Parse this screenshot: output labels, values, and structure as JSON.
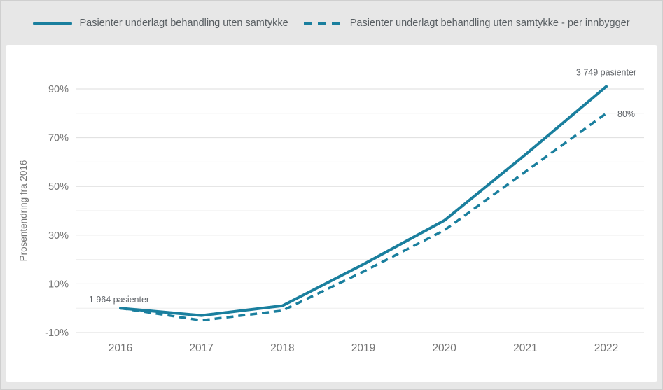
{
  "chart_data": {
    "type": "line",
    "title": "",
    "x": [
      2016,
      2017,
      2018,
      2019,
      2020,
      2021,
      2022
    ],
    "series": [
      {
        "name": "Pasienter underlagt behandling uten samtykke",
        "line_style": "solid",
        "values": [
          0,
          -3,
          1,
          18,
          36,
          63,
          91
        ]
      },
      {
        "name": "Pasienter underlagt behandling uten samtykke - per innbygger",
        "line_style": "dashed",
        "values": [
          0,
          -5,
          -1,
          15,
          32,
          56,
          80
        ]
      }
    ],
    "xlabel": "",
    "ylabel": "Prosentendring fra 2016",
    "yticks_labeled": [
      -10,
      10,
      30,
      50,
      70,
      90
    ],
    "yticks_minor": [
      0,
      20,
      40,
      60,
      80
    ],
    "ylim": [
      -18,
      104
    ],
    "ytick_format": "{v}%",
    "grid": true,
    "legend_position": "top",
    "line_color": "#1a7f9e",
    "annotations": [
      {
        "text": "1 964 pasienter",
        "x": 2016,
        "value": 0,
        "placement": "above-point"
      },
      {
        "text": "3 749 pasienter",
        "x": 2022,
        "value": 91,
        "placement": "above"
      },
      {
        "text": "80%",
        "x": 2022,
        "value": 80,
        "placement": "right"
      }
    ]
  }
}
